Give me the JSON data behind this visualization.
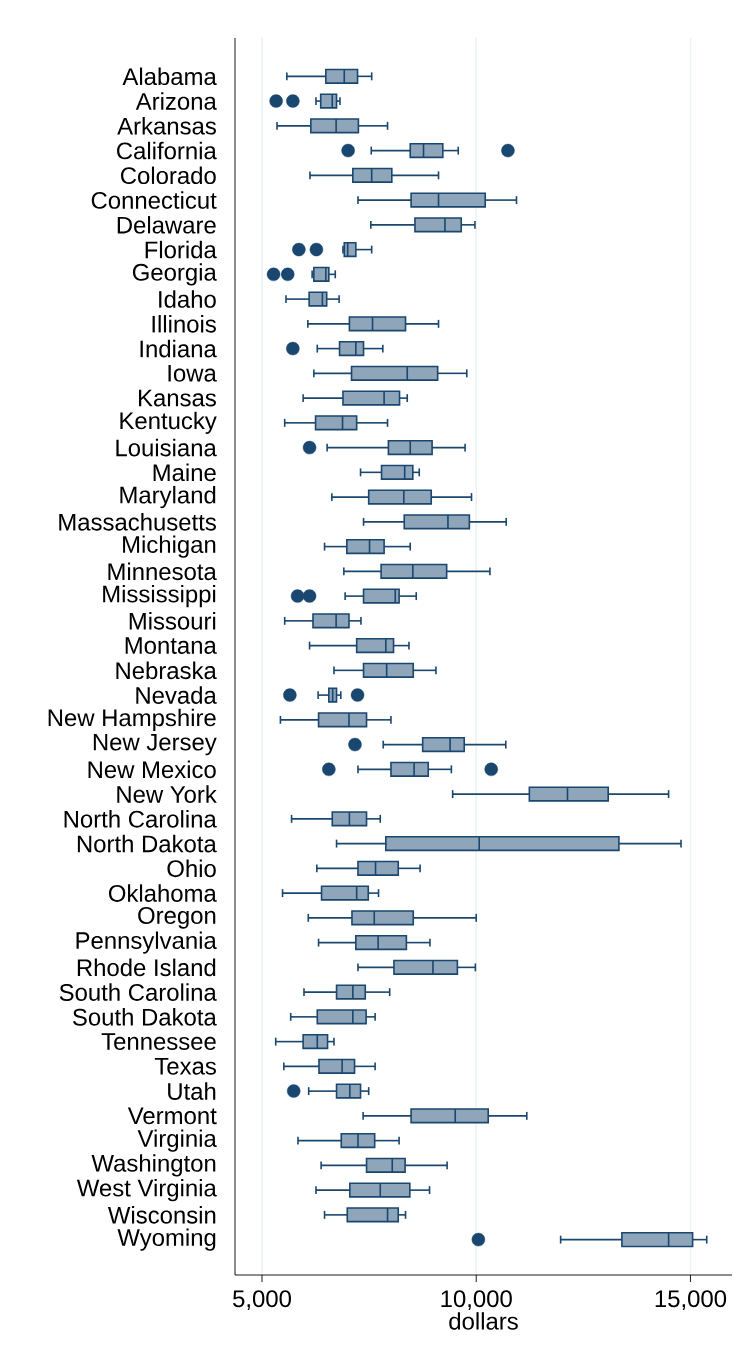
{
  "chart_data": {
    "type": "box",
    "orientation": "horizontal",
    "xlabel": "dollars",
    "grid": "x",
    "color": "#8fa5ba",
    "xlim": [
      4370,
      15970
    ],
    "xticks": [
      {
        "value": 5000,
        "label": "5,000"
      },
      {
        "value": 10000,
        "label": "10,000"
      },
      {
        "value": 15000,
        "label": "15,000"
      }
    ],
    "categories": [
      "Alabama",
      "Arizona",
      "Arkansas",
      "California",
      "Colorado",
      "Connecticut",
      "Delaware",
      "Florida",
      "Georgia",
      "Idaho",
      "Illinois",
      "Indiana",
      "Iowa",
      "Kansas",
      "Kentucky",
      "Louisiana",
      "Maine",
      "Maryland",
      "Massachusetts",
      "Michigan",
      "Minnesota",
      "Mississippi",
      "Missouri",
      "Montana",
      "Nebraska",
      "Nevada",
      "New Hampshire",
      "New Jersey",
      "New Mexico",
      "New York",
      "North Carolina",
      "North Dakota",
      "Ohio",
      "Oklahoma",
      "Oregon",
      "Pennsylvania",
      "Rhode Island",
      "South Carolina",
      "South Dakota",
      "Tennessee",
      "Texas",
      "Utah",
      "Vermont",
      "Virginia",
      "Washington",
      "West Virginia",
      "Wisconsin",
      "Wyoming"
    ],
    "boxes": [
      {
        "low": 5580,
        "q1": 6490,
        "median": 6920,
        "q3": 7230,
        "high": 7560
      },
      {
        "low": 6260,
        "q1": 6370,
        "median": 6640,
        "q3": 6740,
        "high": 6820,
        "outliers": [
          5330,
          5720
        ]
      },
      {
        "low": 5350,
        "q1": 6140,
        "median": 6730,
        "q3": 7250,
        "high": 7930
      },
      {
        "low": 7550,
        "q1": 8460,
        "median": 8770,
        "q3": 9220,
        "high": 9580,
        "outliers": [
          7010,
          10740
        ]
      },
      {
        "low": 6120,
        "q1": 7120,
        "median": 7560,
        "q3": 8030,
        "high": 9120
      },
      {
        "low": 7240,
        "q1": 8480,
        "median": 9120,
        "q3": 10210,
        "high": 10940
      },
      {
        "low": 7540,
        "q1": 8570,
        "median": 9270,
        "q3": 9650,
        "high": 9970
      },
      {
        "low": 6890,
        "q1": 6920,
        "median": 7000,
        "q3": 7190,
        "high": 7560,
        "outliers": [
          5860,
          6270
        ]
      },
      {
        "low": 6170,
        "q1": 6210,
        "median": 6490,
        "q3": 6560,
        "high": 6710,
        "outliers": [
          5270,
          5600
        ]
      },
      {
        "low": 5560,
        "q1": 6100,
        "median": 6410,
        "q3": 6510,
        "high": 6800
      },
      {
        "low": 6070,
        "q1": 7040,
        "median": 7580,
        "q3": 8350,
        "high": 9120
      },
      {
        "low": 6290,
        "q1": 6810,
        "median": 7190,
        "q3": 7370,
        "high": 7820,
        "outliers": [
          5720
        ]
      },
      {
        "low": 6210,
        "q1": 7090,
        "median": 8390,
        "q3": 9100,
        "high": 9780
      },
      {
        "low": 5960,
        "q1": 6890,
        "median": 7850,
        "q3": 8210,
        "high": 8390
      },
      {
        "low": 5530,
        "q1": 6250,
        "median": 6880,
        "q3": 7210,
        "high": 7930
      },
      {
        "low": 6520,
        "q1": 7950,
        "median": 8460,
        "q3": 8970,
        "high": 9740,
        "outliers": [
          6110
        ]
      },
      {
        "low": 7300,
        "q1": 7790,
        "median": 8330,
        "q3": 8520,
        "high": 8670
      },
      {
        "low": 6630,
        "q1": 7490,
        "median": 8310,
        "q3": 8950,
        "high": 9890
      },
      {
        "low": 7370,
        "q1": 8320,
        "median": 9340,
        "q3": 9840,
        "high": 10700
      },
      {
        "low": 6460,
        "q1": 6980,
        "median": 7510,
        "q3": 7850,
        "high": 8460
      },
      {
        "low": 6910,
        "q1": 7780,
        "median": 8520,
        "q3": 9310,
        "high": 10320
      },
      {
        "low": 6940,
        "q1": 7370,
        "median": 8110,
        "q3": 8200,
        "high": 8600,
        "outliers": [
          5830,
          6110
        ]
      },
      {
        "low": 5530,
        "q1": 6190,
        "median": 6730,
        "q3": 7030,
        "high": 7310
      },
      {
        "low": 6110,
        "q1": 7210,
        "median": 7890,
        "q3": 8070,
        "high": 8430
      },
      {
        "low": 6680,
        "q1": 7370,
        "median": 7910,
        "q3": 8530,
        "high": 9060
      },
      {
        "low": 6310,
        "q1": 6560,
        "median": 6650,
        "q3": 6740,
        "high": 6840,
        "outliers": [
          5650,
          7230
        ]
      },
      {
        "low": 5430,
        "q1": 6320,
        "median": 7030,
        "q3": 7440,
        "high": 8010
      },
      {
        "low": 7830,
        "q1": 8750,
        "median": 9390,
        "q3": 9720,
        "high": 10690,
        "outliers": [
          7170
        ]
      },
      {
        "low": 7240,
        "q1": 8010,
        "median": 8550,
        "q3": 8880,
        "high": 9420,
        "outliers": [
          6560,
          10350
        ]
      },
      {
        "low": 9450,
        "q1": 11240,
        "median": 12130,
        "q3": 13080,
        "high": 14490
      },
      {
        "low": 5690,
        "q1": 6640,
        "median": 7040,
        "q3": 7440,
        "high": 7760
      },
      {
        "low": 6740,
        "q1": 7890,
        "median": 10070,
        "q3": 13330,
        "high": 14780
      },
      {
        "low": 6280,
        "q1": 7240,
        "median": 7650,
        "q3": 8180,
        "high": 8690
      },
      {
        "low": 5480,
        "q1": 6390,
        "median": 7210,
        "q3": 7480,
        "high": 7720
      },
      {
        "low": 6080,
        "q1": 7100,
        "median": 7620,
        "q3": 8530,
        "high": 10000
      },
      {
        "low": 6320,
        "q1": 7190,
        "median": 7710,
        "q3": 8370,
        "high": 8920
      },
      {
        "low": 7240,
        "q1": 8080,
        "median": 8990,
        "q3": 9560,
        "high": 9980
      },
      {
        "low": 5980,
        "q1": 6740,
        "median": 7120,
        "q3": 7410,
        "high": 7980
      },
      {
        "low": 5670,
        "q1": 6290,
        "median": 7120,
        "q3": 7430,
        "high": 7640
      },
      {
        "low": 5320,
        "q1": 5960,
        "median": 6290,
        "q3": 6530,
        "high": 6680
      },
      {
        "low": 5510,
        "q1": 6330,
        "median": 6870,
        "q3": 7160,
        "high": 7640
      },
      {
        "low": 6090,
        "q1": 6740,
        "median": 7050,
        "q3": 7300,
        "high": 7490,
        "outliers": [
          5740
        ]
      },
      {
        "low": 7360,
        "q1": 8480,
        "median": 9510,
        "q3": 10280,
        "high": 11180
      },
      {
        "low": 5840,
        "q1": 6850,
        "median": 7240,
        "q3": 7630,
        "high": 8200
      },
      {
        "low": 6380,
        "q1": 7440,
        "median": 8040,
        "q3": 8340,
        "high": 9320
      },
      {
        "low": 6260,
        "q1": 7050,
        "median": 7760,
        "q3": 8450,
        "high": 8910
      },
      {
        "low": 6460,
        "q1": 6990,
        "median": 7930,
        "q3": 8180,
        "high": 8350
      },
      {
        "low": 11970,
        "q1": 13400,
        "median": 14490,
        "q3": 15050,
        "high": 15380,
        "outliers": [
          10050
        ]
      }
    ]
  }
}
